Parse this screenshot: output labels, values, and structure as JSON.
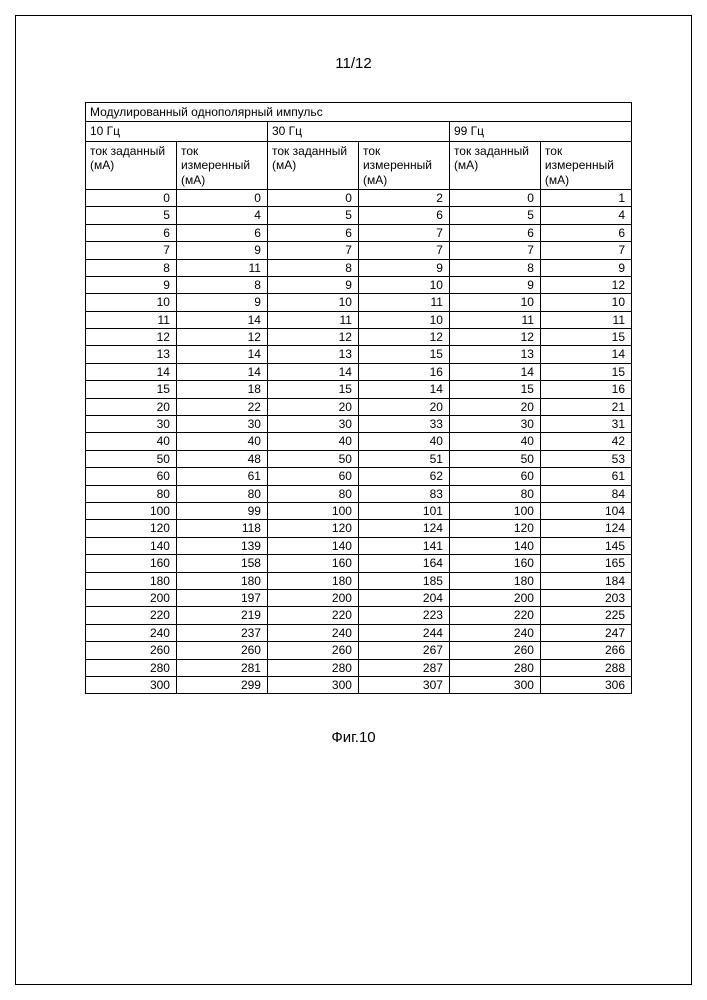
{
  "page_number": "11/12",
  "figure_caption": "Фиг.10",
  "table": {
    "title": "Модулированный однополярный импульс",
    "freq_headers": [
      "10 Гц",
      "30 Гц",
      "99 Гц"
    ],
    "col_pair_labels": [
      "ток заданный (мА)",
      "ток измеренный (мА)"
    ],
    "rows": [
      [
        "0",
        "0",
        "0",
        "2",
        "0",
        "1"
      ],
      [
        "5",
        "4",
        "5",
        "6",
        "5",
        "4"
      ],
      [
        "6",
        "6",
        "6",
        "7",
        "6",
        "6"
      ],
      [
        "7",
        "9",
        "7",
        "7",
        "7",
        "7"
      ],
      [
        "8",
        "11",
        "8",
        "9",
        "8",
        "9"
      ],
      [
        "9",
        "8",
        "9",
        "10",
        "9",
        "12"
      ],
      [
        "10",
        "9",
        "10",
        "11",
        "10",
        "10"
      ],
      [
        "11",
        "14",
        "11",
        "10",
        "11",
        "11"
      ],
      [
        "12",
        "12",
        "12",
        "12",
        "12",
        "15"
      ],
      [
        "13",
        "14",
        "13",
        "15",
        "13",
        "14"
      ],
      [
        "14",
        "14",
        "14",
        "16",
        "14",
        "15"
      ],
      [
        "15",
        "18",
        "15",
        "14",
        "15",
        "16"
      ],
      [
        "20",
        "22",
        "20",
        "20",
        "20",
        "21"
      ],
      [
        "30",
        "30",
        "30",
        "33",
        "30",
        "31"
      ],
      [
        "40",
        "40",
        "40",
        "40",
        "40",
        "42"
      ],
      [
        "50",
        "48",
        "50",
        "51",
        "50",
        "53"
      ],
      [
        "60",
        "61",
        "60",
        "62",
        "60",
        "61"
      ],
      [
        "80",
        "80",
        "80",
        "83",
        "80",
        "84"
      ],
      [
        "100",
        "99",
        "100",
        "101",
        "100",
        "104"
      ],
      [
        "120",
        "118",
        "120",
        "124",
        "120",
        "124"
      ],
      [
        "140",
        "139",
        "140",
        "141",
        "140",
        "145"
      ],
      [
        "160",
        "158",
        "160",
        "164",
        "160",
        "165"
      ],
      [
        "180",
        "180",
        "180",
        "185",
        "180",
        "184"
      ],
      [
        "200",
        "197",
        "200",
        "204",
        "200",
        "203"
      ],
      [
        "220",
        "219",
        "220",
        "223",
        "220",
        "225"
      ],
      [
        "240",
        "237",
        "240",
        "244",
        "240",
        "247"
      ],
      [
        "260",
        "260",
        "260",
        "267",
        "260",
        "266"
      ],
      [
        "280",
        "281",
        "280",
        "287",
        "280",
        "288"
      ],
      [
        "300",
        "299",
        "300",
        "307",
        "300",
        "306"
      ]
    ]
  }
}
